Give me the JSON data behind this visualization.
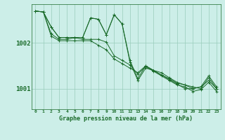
{
  "xlabel": "Graphe pression niveau de la mer (hPa)",
  "background_color": "#cceee8",
  "plot_bg_color": "#cceee8",
  "grid_color": "#99ccbb",
  "line_color": "#1a6b2a",
  "xlim": [
    -0.5,
    23.5
  ],
  "ylim": [
    1000.55,
    1002.85
  ],
  "yticks": [
    1001,
    1002
  ],
  "xticks": [
    0,
    1,
    2,
    3,
    4,
    5,
    6,
    7,
    8,
    9,
    10,
    11,
    12,
    13,
    14,
    15,
    16,
    17,
    18,
    19,
    20,
    21,
    22,
    23
  ],
  "lines": [
    [
      1002.7,
      1002.68,
      1002.15,
      1002.05,
      1002.05,
      1002.05,
      1002.05,
      1002.05,
      1001.95,
      1001.85,
      1001.65,
      1001.55,
      1001.45,
      1001.35,
      1001.5,
      1001.4,
      1001.3,
      1001.22,
      1001.12,
      1001.08,
      1001.0,
      1001.04,
      1001.18,
      1001.0
    ],
    [
      1002.7,
      1002.68,
      1002.2,
      1002.08,
      1002.08,
      1002.12,
      1002.08,
      1002.08,
      1002.08,
      1002.02,
      1001.72,
      1001.62,
      1001.52,
      1001.32,
      1001.48,
      1001.38,
      1001.28,
      1001.18,
      1001.08,
      1001.04,
      1000.94,
      1000.98,
      1001.14,
      1000.94
    ],
    [
      1002.7,
      1002.68,
      1002.35,
      1002.12,
      1002.12,
      1002.12,
      1002.12,
      1002.55,
      1002.52,
      1002.18,
      1002.62,
      1002.42,
      1001.62,
      1001.22,
      1001.5,
      1001.4,
      1001.3,
      1001.2,
      1001.1,
      1001.0,
      1001.0,
      1001.04,
      1001.28,
      1001.04
    ],
    [
      1002.7,
      1002.68,
      1002.35,
      1002.12,
      1002.12,
      1002.12,
      1002.12,
      1002.55,
      1002.52,
      1002.18,
      1002.62,
      1002.42,
      1001.58,
      1001.18,
      1001.45,
      1001.4,
      1001.35,
      1001.24,
      1001.14,
      1001.08,
      1001.04,
      1001.0,
      1001.24,
      1001.0
    ]
  ]
}
